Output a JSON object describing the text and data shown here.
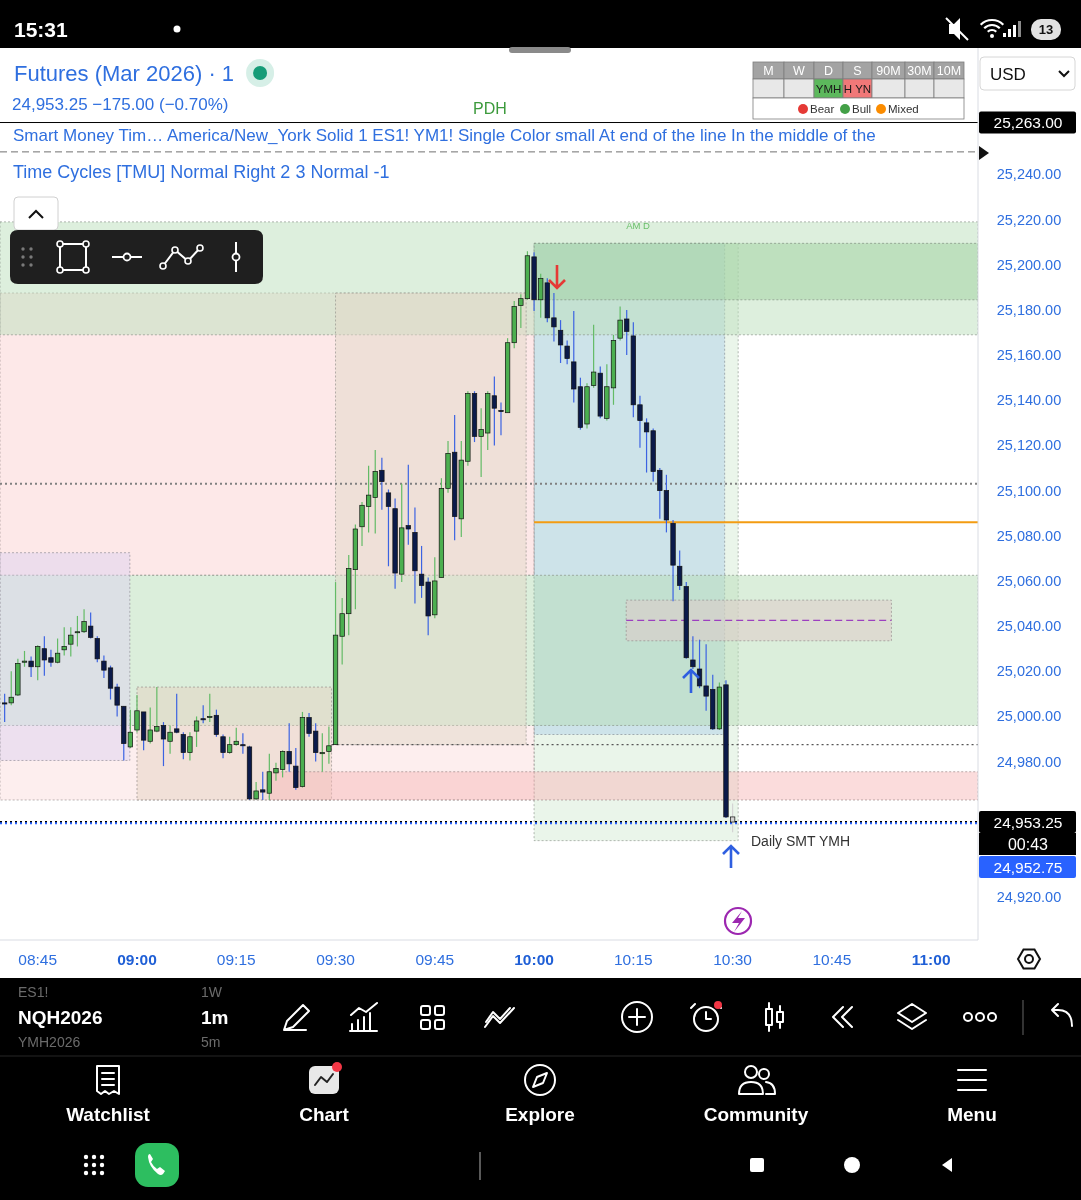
{
  "chart_data": {
    "type": "candlestick",
    "title": "Futures (Mar 2026) · 1",
    "subtitle": "24,953.25 −175.00 (−0.70%)",
    "x": [
      8.6667,
      8.6833,
      8.7,
      8.7167,
      8.7333,
      8.75,
      8.7667,
      8.7833,
      8.8,
      8.8167,
      8.8333,
      8.85,
      8.8667,
      8.8833,
      8.9,
      8.9167,
      8.9333,
      8.95,
      8.9667,
      8.9833,
      9,
      9.0167,
      9.0333,
      9.05,
      9.0667,
      9.0833,
      9.1,
      9.1167,
      9.1333,
      9.15,
      9.1667,
      9.1833,
      9.2,
      9.2167,
      9.2333,
      9.25,
      9.2667,
      9.2833,
      9.3,
      9.3167,
      9.3333,
      9.35,
      9.3667,
      9.3833,
      9.4,
      9.4167,
      9.4333,
      9.45,
      9.4667,
      9.4833,
      9.5,
      9.5167,
      9.5333,
      9.55,
      9.5667,
      9.5833,
      9.6,
      9.6167,
      9.6333,
      9.65,
      9.6667,
      9.6833,
      9.7,
      9.7167,
      9.7333,
      9.75,
      9.7667,
      9.7833,
      9.8,
      9.8167,
      9.8333,
      9.85,
      9.8667,
      9.8833,
      9.9,
      9.9167,
      9.9333,
      9.95,
      9.9667,
      9.9833,
      10,
      10.0167,
      10.0333,
      10.05,
      10.0667,
      10.0833,
      10.1,
      10.1167,
      10.1333,
      10.15,
      10.1667,
      10.1833,
      10.2,
      10.2167,
      10.2333,
      10.25,
      10.2667,
      10.2833,
      10.3,
      10.3167,
      10.3333,
      10.35,
      10.3667,
      10.3833,
      10.4,
      10.4167,
      10.4333,
      10.45,
      10.4667,
      10.4833,
      10.5
    ],
    "ohlc": [
      [
        25006,
        25010,
        24997.5,
        25005.5
      ],
      [
        25006,
        25020,
        25005,
        25008.5
      ],
      [
        25009.5,
        25025.5,
        25009,
        25023.5
      ],
      [
        25024,
        25029,
        25022,
        25024.5
      ],
      [
        25024.5,
        25026.5,
        25017.5,
        25022
      ],
      [
        25022,
        25031.5,
        25016,
        25031
      ],
      [
        25030,
        25035.5,
        25018,
        25025
      ],
      [
        25026,
        25029.5,
        25022,
        25024
      ],
      [
        25024,
        25034.5,
        25023.5,
        25028
      ],
      [
        25029.5,
        25039.5,
        25027,
        25031
      ],
      [
        25032,
        25039.5,
        25026.5,
        25036
      ],
      [
        25037.5,
        25044.5,
        25031,
        25037.5
      ],
      [
        25037.5,
        25047.5,
        25037,
        25042
      ],
      [
        25040,
        25046,
        25034.5,
        25035
      ],
      [
        25034.5,
        25035.5,
        25024,
        25025.5
      ],
      [
        25024.5,
        25027,
        25017,
        25020.5
      ],
      [
        25021.5,
        25022.5,
        25007.5,
        25012.5
      ],
      [
        25013,
        25014.5,
        25000,
        25005
      ],
      [
        25004.5,
        25004.5,
        24980.5,
        24988
      ],
      [
        24986.5,
        25003,
        24986,
        24993
      ],
      [
        24994,
        25009.5,
        24993,
        25002.5
      ],
      [
        25002,
        25002,
        24985,
        24989.5
      ],
      [
        24989,
        25004,
        24988,
        24994
      ],
      [
        24993.5,
        25013,
        24993,
        24995.5
      ],
      [
        24996,
        24997.5,
        24978,
        24990
      ],
      [
        24989,
        24996,
        24983.5,
        24993
      ],
      [
        24994.5,
        25010,
        24992.5,
        24993
      ],
      [
        24992,
        24993,
        24981,
        24984
      ],
      [
        24984,
        24993,
        24980.5,
        24991
      ],
      [
        24993.5,
        25000,
        24986.5,
        24998
      ],
      [
        24999,
        25005,
        24997,
        24998.5
      ],
      [
        24999.5,
        25010,
        24997.5,
        25000
      ],
      [
        25000.5,
        25003,
        24991,
        24992
      ],
      [
        24991,
        24992,
        24981.5,
        24984
      ],
      [
        24984,
        24991,
        24983.5,
        24987.5
      ],
      [
        24987.5,
        24995,
        24987,
        24989
      ],
      [
        24987.5,
        24992.5,
        24983.5,
        24987
      ],
      [
        24986.5,
        24987,
        24963,
        24963.5
      ],
      [
        24963.5,
        24971,
        24963,
        24967
      ],
      [
        24967.5,
        24975.5,
        24963,
        24966.5
      ],
      [
        24966,
        24983.5,
        24963,
        24975.5
      ],
      [
        24975,
        24979.5,
        24971.5,
        24977
      ],
      [
        24976.5,
        24985,
        24973,
        24984.5
      ],
      [
        24984.5,
        24997,
        24975.5,
        24979
      ],
      [
        24978,
        24986,
        24967.5,
        24968.5
      ],
      [
        24969,
        25002,
        24968.5,
        24999.5
      ],
      [
        24999.5,
        25001.5,
        24991,
        24992.5
      ],
      [
        24993.5,
        24997,
        24980,
        24984
      ],
      [
        24983.5,
        24992.5,
        24975.5,
        24984
      ],
      [
        24984.5,
        24995.5,
        24979,
        24987
      ],
      [
        24987.5,
        25059.5,
        24987.5,
        25036
      ],
      [
        25035.5,
        25052.5,
        25023,
        25045.5
      ],
      [
        25045.5,
        25071.5,
        25036,
        25065.5
      ],
      [
        25065,
        25085,
        25047.5,
        25083
      ],
      [
        25084,
        25095,
        25075.5,
        25093.5
      ],
      [
        25093,
        25111,
        25081.5,
        25098
      ],
      [
        25097,
        25118,
        25081,
        25108.5
      ],
      [
        25109,
        25114.5,
        25091.5,
        25104
      ],
      [
        25099,
        25100.5,
        25066.5,
        25093
      ],
      [
        25092,
        25096.5,
        25056.5,
        25063.5
      ],
      [
        25063,
        25103,
        25059.5,
        25083.5
      ],
      [
        25084.5,
        25111.5,
        25076,
        25083
      ],
      [
        25081.5,
        25092.5,
        25050,
        25064.5
      ],
      [
        25063,
        25075.5,
        25052.5,
        25058
      ],
      [
        25059.5,
        25061.5,
        25036,
        25044.5
      ],
      [
        25045,
        25070.5,
        25043.5,
        25060
      ],
      [
        25061.5,
        25105.5,
        25061.5,
        25101
      ],
      [
        25101,
        25122,
        25099,
        25116.5
      ],
      [
        25117,
        25133.5,
        25078,
        25088.5
      ],
      [
        25087.5,
        25122,
        25079.5,
        25113.5
      ],
      [
        25113,
        25144,
        25111,
        25143
      ],
      [
        25143,
        25144,
        25121.5,
        25124
      ],
      [
        25124,
        25136.5,
        25106,
        25127
      ],
      [
        25125.5,
        25144,
        25118,
        25143
      ],
      [
        25142,
        25150.5,
        25120,
        25136.5
      ],
      [
        25135.5,
        25139,
        25124.5,
        25135
      ],
      [
        25134.5,
        25167.5,
        25134.5,
        25165.5
      ],
      [
        25165.5,
        25184,
        25163,
        25181.5
      ],
      [
        25182,
        25187,
        25172,
        25185
      ],
      [
        25185,
        25206,
        25184.5,
        25204
      ],
      [
        25203.5,
        25205.5,
        25179.5,
        25184.5
      ],
      [
        25184.5,
        25196,
        25176.5,
        25194
      ],
      [
        25192,
        25194,
        25174.5,
        25176.5
      ],
      [
        25176.5,
        25187.5,
        25166,
        25172.5
      ],
      [
        25171,
        25175.5,
        25156.5,
        25164.5
      ],
      [
        25164,
        25166.5,
        25156,
        25158.5
      ],
      [
        25157,
        25179.5,
        25139,
        25145
      ],
      [
        25146,
        25150,
        25127,
        25128
      ],
      [
        25129.5,
        25147.5,
        25127.5,
        25146
      ],
      [
        25146.5,
        25173.5,
        25145.5,
        25152.5
      ],
      [
        25152,
        25155,
        25132,
        25133
      ],
      [
        25132,
        25156,
        25131,
        25146
      ],
      [
        25145.5,
        25169,
        25138,
        25166.5
      ],
      [
        25167.5,
        25181.5,
        25166.5,
        25175.5
      ],
      [
        25176,
        25180,
        25160,
        25170.5
      ],
      [
        25168.5,
        25174.5,
        25132.5,
        25138
      ],
      [
        25138,
        25142,
        25119,
        25131
      ],
      [
        25130,
        25132,
        25108,
        25126
      ],
      [
        25126.5,
        25127.5,
        25104,
        25108.5
      ],
      [
        25109,
        25110,
        25087.5,
        25100
      ],
      [
        25100,
        25107,
        25081.5,
        25087
      ],
      [
        25085.5,
        25087,
        25051,
        25067
      ],
      [
        25066.5,
        25073.5,
        25056,
        25058
      ],
      [
        25057.5,
        25059.5,
        25025.5,
        25026
      ],
      [
        25025,
        25035.5,
        25021,
        25022
      ],
      [
        25021,
        25034,
        25012.5,
        25013.5
      ],
      [
        25013.5,
        25032,
        25002.5,
        25009
      ],
      [
        25012,
        25018.5,
        24994,
        24994.5
      ],
      [
        24994.5,
        25015,
        24994,
        25013
      ],
      [
        25014,
        25016,
        24955,
        24955.5
      ],
      [
        24955.5,
        24961.5,
        24948.75,
        24953.25
      ]
    ],
    "colors": [
      "#0b1a4a",
      "#4caf50",
      "#4caf50",
      "#4caf50",
      "#0b1a4a",
      "#4caf50",
      "#0b1a4a",
      "#0b1a4a",
      "#4caf50",
      "#4caf50",
      "#4caf50",
      "#4caf50",
      "#4caf50",
      "#0b1a4a",
      "#0b1a4a",
      "#0b1a4a",
      "#0b1a4a",
      "#0b1a4a",
      "#0b1a4a",
      "#4caf50",
      "#4caf50",
      "#0b1a4a",
      "#4caf50",
      "#4caf50",
      "#0b1a4a",
      "#4caf50",
      "#0b1a4a",
      "#0b1a4a",
      "#4caf50",
      "#4caf50",
      "#0b1a4a",
      "#4caf50",
      "#0b1a4a",
      "#0b1a4a",
      "#4caf50",
      "#4caf50",
      "#0b1a4a",
      "#0b1a4a",
      "#4caf50",
      "#0b1a4a",
      "#4caf50",
      "#4caf50",
      "#4caf50",
      "#0b1a4a",
      "#0b1a4a",
      "#4caf50",
      "#0b1a4a",
      "#0b1a4a",
      "#4caf50",
      "#4caf50",
      "#4caf50",
      "#4caf50",
      "#4caf50",
      "#4caf50",
      "#4caf50",
      "#4caf50",
      "#4caf50",
      "#0b1a4a",
      "#0b1a4a",
      "#0b1a4a",
      "#4caf50",
      "#0b1a4a",
      "#0b1a4a",
      "#0b1a4a",
      "#0b1a4a",
      "#4caf50",
      "#4caf50",
      "#4caf50",
      "#0b1a4a",
      "#4caf50",
      "#4caf50",
      "#0b1a4a",
      "#4caf50",
      "#4caf50",
      "#0b1a4a",
      "#0b1a4a",
      "#4caf50",
      "#4caf50",
      "#4caf50",
      "#4caf50",
      "#0b1a4a",
      "#4caf50",
      "#0b1a4a",
      "#0b1a4a",
      "#0b1a4a",
      "#0b1a4a",
      "#0b1a4a",
      "#0b1a4a",
      "#4caf50",
      "#4caf50",
      "#0b1a4a",
      "#4caf50",
      "#4caf50",
      "#4caf50",
      "#0b1a4a",
      "#0b1a4a",
      "#0b1a4a",
      "#0b1a4a",
      "#0b1a4a",
      "#0b1a4a",
      "#0b1a4a",
      "#0b1a4a",
      "#0b1a4a",
      "#0b1a4a",
      "#0b1a4a",
      "#0b1a4a",
      "#0b1a4a",
      "#0b1a4a",
      "#4caf50",
      "#0b1a4a",
      "#d4d4d4"
    ],
    "xlim": [
      8.655,
      11.118
    ],
    "xticks": [
      {
        "value": 8.75,
        "label": "08:45"
      },
      {
        "value": 9,
        "label": "09:00"
      },
      {
        "value": 9.25,
        "label": "09:15"
      },
      {
        "value": 9.5,
        "label": "09:30"
      },
      {
        "value": 9.75,
        "label": "09:45"
      },
      {
        "value": 10,
        "label": "10:00"
      },
      {
        "value": 10.25,
        "label": "10:15"
      },
      {
        "value": 10.5,
        "label": "10:30"
      },
      {
        "value": 10.75,
        "label": "10:45"
      },
      {
        "value": 11,
        "label": "11:00"
      }
    ],
    "ylim": [
      24901,
      25296
    ],
    "yticks": [
      {
        "value": 24920,
        "label": "24,920.00"
      },
      {
        "value": 24980,
        "label": "24,980.00"
      },
      {
        "value": 25000,
        "label": "25,000.00"
      },
      {
        "value": 25020,
        "label": "25,020.00"
      },
      {
        "value": 25040,
        "label": "25,040.00"
      },
      {
        "value": 25060,
        "label": "25,060.00"
      },
      {
        "value": 25080,
        "label": "25,080.00"
      },
      {
        "value": 25100,
        "label": "25,100.00"
      },
      {
        "value": 25120,
        "label": "25,120.00"
      },
      {
        "value": 25140,
        "label": "25,140.00"
      },
      {
        "value": 25160,
        "label": "25,160.00"
      },
      {
        "value": 25180,
        "label": "25,180.00"
      },
      {
        "value": 25200,
        "label": "25,200.00"
      },
      {
        "value": 25220,
        "label": "25,220.00"
      },
      {
        "value": 25240,
        "label": "25,240.00"
      }
    ],
    "series": [
      {
        "type": "line",
        "x": [
          10,
          10.514
        ],
        "values": [
          null,
          null
        ],
        "lower": [
          24945,
          24945
        ],
        "upper": [
          25209.5,
          25209.5
        ],
        "color": "#eaf5ea"
      },
      {
        "type": "line",
        "x": [
          10,
          10.48
        ],
        "values": [
          null,
          null
        ],
        "lower": [
          24992,
          24992
        ],
        "upper": [
          25209.5,
          25209.5
        ],
        "color": "#d7e8f3"
      },
      {
        "type": "line",
        "x": [
          8.655,
          10
        ],
        "values": [
          null,
          null
        ],
        "lower": [
          25062.5,
          25062.5
        ],
        "upper": [
          25187.5,
          25187.5
        ],
        "color": "#fde8e8"
      },
      {
        "type": "line",
        "x": [
          8.655,
          10
        ],
        "values": [
          null,
          null
        ],
        "lower": [
          24963,
          24963
        ],
        "upper": [
          24996,
          24996
        ],
        "color": "#fdeeee"
      },
      {
        "type": "line",
        "x": [
          8.655,
          11.118
        ],
        "values": [
          null,
          null
        ],
        "lower": [
          25169,
          25169
        ],
        "upper": [
          25219,
          25219
        ],
        "color": "#ddefdd"
      },
      {
        "type": "line",
        "x": [
          8.655,
          11.118
        ],
        "values": [
          null,
          null
        ],
        "lower": [
          24996,
          24996
        ],
        "upper": [
          25062.5,
          25062.5
        ],
        "color": "#dbeedb"
      },
      {
        "type": "line",
        "x": [
          10,
          11.118
        ],
        "values": [
          null,
          null
        ],
        "lower": [
          25184.5,
          25184.5
        ],
        "upper": [
          25209.5,
          25209.5
        ],
        "color": "#cfe8cf"
      },
      {
        "type": "line",
        "x": [
          8.655,
          8.982
        ],
        "values": [
          null,
          null
        ],
        "lower": [
          24980.5,
          24980.5
        ],
        "upper": [
          25072.5,
          25072.5
        ],
        "color": "#eee8f7"
      },
      {
        "type": "line",
        "x": [
          9.5,
          9.98
        ],
        "values": [
          null,
          null
        ],
        "lower": [
          24987.5,
          24987.5
        ],
        "upper": [
          25187.5,
          25187.5
        ],
        "color": "#f0ebe3"
      },
      {
        "type": "line",
        "x": [
          9,
          9.49
        ],
        "values": [
          null,
          null
        ],
        "lower": [
          24963,
          24963
        ],
        "upper": [
          25013,
          25013
        ],
        "color": "#f2e8e0"
      },
      {
        "type": "line",
        "x": [
          9.333,
          11.118
        ],
        "values": [
          null,
          null
        ],
        "lower": [
          24963,
          24963
        ],
        "upper": [
          24975.5,
          24975.5
        ],
        "color": "#fbdcdc"
      },
      {
        "type": "line",
        "x": [
          10.232,
          10.9
        ],
        "values": [
          null,
          null
        ],
        "lower": [
          25033.5,
          25033.5
        ],
        "upper": [
          25051.5,
          25051.5
        ],
        "color": "#efe3e3"
      },
      {
        "type": "line",
        "x": [
          10,
          11.118
        ],
        "values": [
          25086,
          25086
        ],
        "color": "#f39c12"
      },
      {
        "type": "line",
        "x": [
          9.49,
          11.118
        ],
        "values": [
          24987.5,
          24987.5
        ],
        "color": "#555555",
        "line_style": "dotted"
      },
      {
        "type": "line",
        "x": [
          10.232,
          10.9
        ],
        "values": [
          25042.5,
          25042.5
        ],
        "color": "#9c3fc0",
        "line_style": "dashed"
      }
    ],
    "ref_lines": [
      {
        "axis": "y",
        "value": 25263,
        "label": "25,263.00",
        "color": "#000000"
      },
      {
        "axis": "y",
        "value": 25250,
        "color": "#707070",
        "line_style": "dashed"
      },
      {
        "axis": "y",
        "value": 25103,
        "color": "#808080",
        "line_style": "dotted"
      },
      {
        "axis": "y",
        "value": 24953.25,
        "label": "24,953.25",
        "color": "#000000",
        "line_style": "dotted"
      },
      {
        "axis": "y",
        "value": 24952.75,
        "label": "24,952.75",
        "color": "#2962ff",
        "line_style": "dotted"
      }
    ],
    "annotations": [
      "15:31",
      "13",
      "Smart Money Tim… America/New_York Solid 1 ES1! YM1! Single Color small At end of the line In the middle of the",
      "Time Cycles [TMU] Normal Right 2 3 Normal -1",
      "M",
      "W",
      "D",
      "S",
      "90M",
      "30M",
      "10M",
      "YMH",
      "H YN",
      "Bear",
      "Bull",
      "Mixed",
      "USD",
      "00:43",
      "ES1!",
      "1W",
      "NQH2026",
      "1m",
      "YMH2026",
      "5m",
      "Watchlist",
      "Chart",
      "Explore",
      "Community",
      "Menu",
      {
        "text": "PDH",
        "x": 9.889,
        "y": 25263
      },
      {
        "text": "AM D",
        "x": 10.262,
        "y": 25217.5
      },
      "Daily SMT YMH"
    ]
  }
}
